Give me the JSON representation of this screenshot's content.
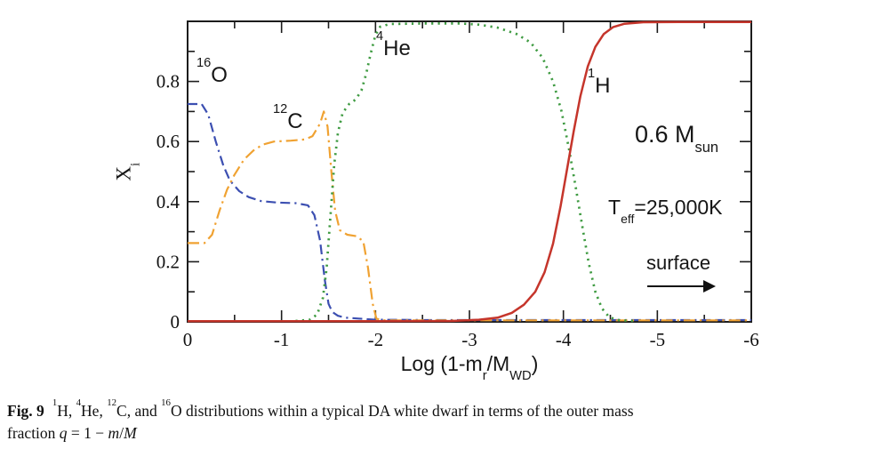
{
  "figure": {
    "annotations": {
      "o16_sup": "16",
      "o16_sym": "O",
      "c12_sup": "12",
      "c12_sym": "C",
      "he4_sup": "4",
      "he4_sym": "He",
      "h1_sup": "1",
      "h1_sym": "H",
      "mass_pre": "0.6 M",
      "mass_sub": "sun",
      "teff_pre": "T",
      "teff_sub": "eff",
      "teff_post": "=25,000K",
      "surface": "surface"
    },
    "x_title": {
      "pre": "Log (1-m",
      "sub1": "r",
      "mid": "/M",
      "sub2": "WD",
      "post": ")"
    },
    "y_title": {
      "pre": "X",
      "sub": "i"
    },
    "caption": {
      "label": "Fig. 9",
      "sup1": "1",
      "seg1": "H, ",
      "sup2": "4",
      "seg2": "He, ",
      "sup3": "12",
      "seg3": "C, and ",
      "sup4": "16",
      "seg4": "O distributions within a typical DA white dwarf in terms of the outer mass",
      "line2_pre": "fraction ",
      "var_q": "q",
      "eq": " = 1 − ",
      "var_m": "m",
      "slash": "/",
      "var_M": "M"
    }
  },
  "chart_data": {
    "type": "line",
    "title": "",
    "xlabel": "Log (1-m_r/M_WD)",
    "ylabel": "X_i",
    "legend": "none",
    "grid": false,
    "frame_color": "#1c1c1c",
    "text_color": "#111111",
    "x_axis": {
      "range": [
        0,
        -6
      ],
      "major_ticks": [
        0,
        -1,
        -2,
        -3,
        -4,
        -5,
        -6
      ],
      "minor_ticks": [
        -0.5,
        -1.5,
        -2.5,
        -3.5,
        -4.5,
        -5.5
      ],
      "tick_labels": [
        "0",
        "-1",
        "-2",
        "-3",
        "-4",
        "-5",
        "-6"
      ]
    },
    "y_axis": {
      "range": [
        0,
        1
      ],
      "major_ticks": [
        0.2,
        0.4,
        0.6,
        0.8
      ],
      "minor_ticks": [
        0.1,
        0.3,
        0.5,
        0.7,
        0.9
      ],
      "label_values": [
        0,
        0.2,
        0.4,
        0.6,
        0.8
      ],
      "tick_labels": [
        "0",
        "0.2",
        "0.4",
        "0.6",
        "0.8"
      ]
    },
    "annotations": [
      {
        "text": "16O",
        "x": -0.2,
        "y": 0.84
      },
      {
        "text": "12C",
        "x": -1.0,
        "y": 0.69
      },
      {
        "text": "4He",
        "x": -2.05,
        "y": 0.92
      },
      {
        "text": "1H",
        "x": -4.3,
        "y": 0.8
      },
      {
        "text": "0.6 Msun",
        "x": -4.9,
        "y": 0.63
      },
      {
        "text": "Teff=25,000K",
        "x": -4.6,
        "y": 0.39
      },
      {
        "text": "surface ->",
        "x": -5.0,
        "y": 0.2
      }
    ],
    "series": [
      {
        "name": "16O",
        "color": "#3c4fb1",
        "line_style": "dashed",
        "points": [
          [
            0,
            0.725
          ],
          [
            -0.15,
            0.725
          ],
          [
            -0.22,
            0.69
          ],
          [
            -0.3,
            0.6
          ],
          [
            -0.38,
            0.52
          ],
          [
            -0.45,
            0.47
          ],
          [
            -0.55,
            0.435
          ],
          [
            -0.65,
            0.415
          ],
          [
            -0.78,
            0.402
          ],
          [
            -0.95,
            0.397
          ],
          [
            -1.15,
            0.395
          ],
          [
            -1.28,
            0.388
          ],
          [
            -1.35,
            0.355
          ],
          [
            -1.41,
            0.27
          ],
          [
            -1.46,
            0.14
          ],
          [
            -1.5,
            0.06
          ],
          [
            -1.54,
            0.033
          ],
          [
            -1.6,
            0.02
          ],
          [
            -1.68,
            0.014
          ],
          [
            -1.82,
            0.011
          ],
          [
            -2,
            0.007
          ],
          [
            -2.6,
            0.006
          ],
          [
            -3.4,
            0.006
          ],
          [
            -4.2,
            0.006
          ],
          [
            -5,
            0.006
          ],
          [
            -6,
            0.006
          ]
        ]
      },
      {
        "name": "12C",
        "color": "#f0a232",
        "line_style": "dashdot",
        "points": [
          [
            0,
            0.262
          ],
          [
            -0.18,
            0.262
          ],
          [
            -0.26,
            0.29
          ],
          [
            -0.34,
            0.37
          ],
          [
            -0.42,
            0.44
          ],
          [
            -0.5,
            0.49
          ],
          [
            -0.6,
            0.54
          ],
          [
            -0.7,
            0.57
          ],
          [
            -0.8,
            0.59
          ],
          [
            -0.92,
            0.6
          ],
          [
            -1.1,
            0.603
          ],
          [
            -1.25,
            0.607
          ],
          [
            -1.33,
            0.618
          ],
          [
            -1.41,
            0.66
          ],
          [
            -1.45,
            0.7
          ],
          [
            -1.49,
            0.65
          ],
          [
            -1.53,
            0.5
          ],
          [
            -1.57,
            0.37
          ],
          [
            -1.62,
            0.305
          ],
          [
            -1.7,
            0.29
          ],
          [
            -1.8,
            0.285
          ],
          [
            -1.87,
            0.268
          ],
          [
            -1.92,
            0.18
          ],
          [
            -1.97,
            0.06
          ],
          [
            -2.01,
            0.01
          ],
          [
            -2.1,
            0.005
          ],
          [
            -3,
            0.005
          ],
          [
            -4,
            0.005
          ],
          [
            -5,
            0.005
          ],
          [
            -6,
            0.005
          ]
        ]
      },
      {
        "name": "4He",
        "color": "#3f9b42",
        "line_style": "dotted",
        "points": [
          [
            -1.15,
            0.003
          ],
          [
            -1.3,
            0.007
          ],
          [
            -1.38,
            0.025
          ],
          [
            -1.44,
            0.08
          ],
          [
            -1.48,
            0.18
          ],
          [
            -1.52,
            0.35
          ],
          [
            -1.56,
            0.52
          ],
          [
            -1.6,
            0.63
          ],
          [
            -1.65,
            0.695
          ],
          [
            -1.72,
            0.725
          ],
          [
            -1.79,
            0.74
          ],
          [
            -1.85,
            0.77
          ],
          [
            -1.9,
            0.825
          ],
          [
            -1.95,
            0.895
          ],
          [
            -2,
            0.955
          ],
          [
            -2.05,
            0.982
          ],
          [
            -2.15,
            0.991
          ],
          [
            -2.5,
            0.993
          ],
          [
            -2.9,
            0.993
          ],
          [
            -3.1,
            0.989
          ],
          [
            -3.3,
            0.979
          ],
          [
            -3.5,
            0.958
          ],
          [
            -3.65,
            0.93
          ],
          [
            -3.78,
            0.878
          ],
          [
            -3.89,
            0.8
          ],
          [
            -3.98,
            0.7
          ],
          [
            -4.06,
            0.575
          ],
          [
            -4.13,
            0.45
          ],
          [
            -4.2,
            0.32
          ],
          [
            -4.27,
            0.195
          ],
          [
            -4.34,
            0.1
          ],
          [
            -4.41,
            0.045
          ],
          [
            -4.49,
            0.015
          ],
          [
            -4.6,
            0.005
          ],
          [
            -4.75,
            0.003
          ]
        ]
      },
      {
        "name": "1H",
        "color": "#c5352b",
        "line_style": "solid",
        "points": [
          [
            0,
            0.002
          ],
          [
            -1,
            0.002
          ],
          [
            -2,
            0.002
          ],
          [
            -2.8,
            0.003
          ],
          [
            -3.1,
            0.007
          ],
          [
            -3.3,
            0.014
          ],
          [
            -3.45,
            0.03
          ],
          [
            -3.58,
            0.057
          ],
          [
            -3.7,
            0.1
          ],
          [
            -3.8,
            0.165
          ],
          [
            -3.89,
            0.26
          ],
          [
            -3.97,
            0.385
          ],
          [
            -4.04,
            0.51
          ],
          [
            -4.11,
            0.635
          ],
          [
            -4.18,
            0.75
          ],
          [
            -4.26,
            0.85
          ],
          [
            -4.34,
            0.915
          ],
          [
            -4.43,
            0.958
          ],
          [
            -4.53,
            0.981
          ],
          [
            -4.65,
            0.992
          ],
          [
            -4.85,
            0.997
          ],
          [
            -5.4,
            0.998
          ],
          [
            -6,
            0.998
          ]
        ]
      }
    ]
  }
}
